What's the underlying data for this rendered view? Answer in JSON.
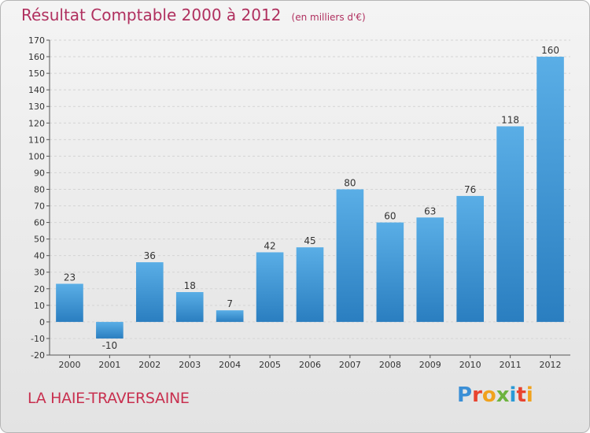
{
  "header": {
    "title": "Résultat Comptable 2000 à 2012",
    "subtitle": "(en milliers d'€)"
  },
  "footer": {
    "place": "LA HAIE-TRAVERSAINE",
    "brand": "Proxiti"
  },
  "colors": {
    "title": "#b0305f",
    "bar_top": "#5aaee6",
    "bar_bottom": "#2a7ec0",
    "gridline": "#d4d4d4"
  },
  "chart_data": {
    "type": "bar",
    "title": "Résultat Comptable 2000 à 2012",
    "subtitle": "(en milliers d'€)",
    "categories": [
      "2000",
      "2001",
      "2002",
      "2003",
      "2004",
      "2005",
      "2006",
      "2007",
      "2008",
      "2009",
      "2010",
      "2011",
      "2012"
    ],
    "values": [
      23,
      -10,
      36,
      18,
      7,
      42,
      45,
      80,
      60,
      63,
      76,
      118,
      160
    ],
    "value_labels": [
      "23",
      "-10",
      "36",
      "18",
      "7",
      "42",
      "45",
      "80",
      "60",
      "63",
      "76",
      "118",
      "160"
    ],
    "xlabel": "",
    "ylabel": "",
    "ylim": [
      -20,
      170
    ],
    "yticks": [
      -20,
      -10,
      0,
      10,
      20,
      30,
      40,
      50,
      60,
      70,
      80,
      90,
      100,
      110,
      120,
      130,
      140,
      150,
      160,
      170
    ],
    "grid": true
  }
}
